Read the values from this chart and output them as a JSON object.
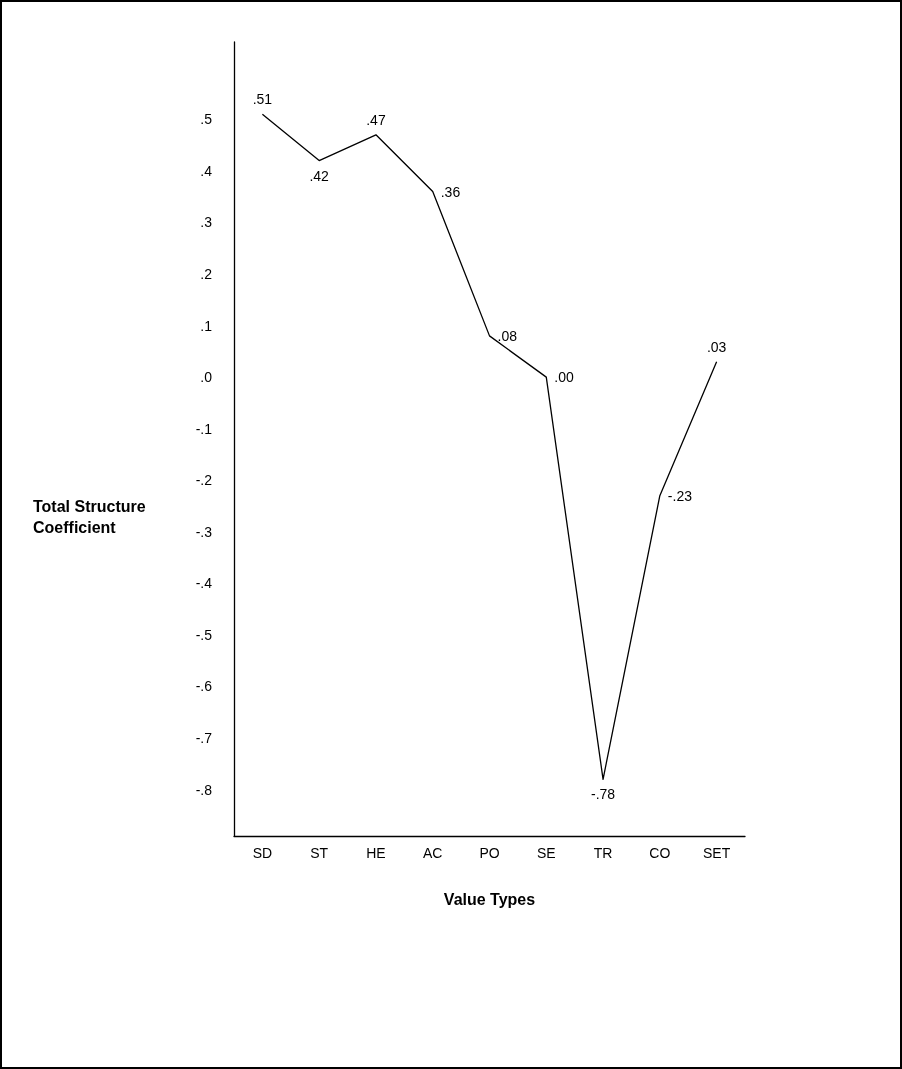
{
  "chart_data": {
    "type": "line",
    "xlabel": "Value Types",
    "ylabel": "Total Structure Coefficient",
    "categories": [
      "SD",
      "ST",
      "HE",
      "AC",
      "PO",
      "SE",
      "TR",
      "CO",
      "SET"
    ],
    "values": [
      0.51,
      0.42,
      0.47,
      0.36,
      0.08,
      0.0,
      -0.78,
      -0.23,
      0.03
    ],
    "value_labels": [
      ".51",
      ".42",
      ".47",
      ".36",
      ".08",
      ".00",
      "-.78",
      "-.23",
      ".03"
    ],
    "color": "#000000",
    "marker": "none",
    "line_style": "solid",
    "ylim": [
      -0.89,
      0.65
    ],
    "yticks": [
      {
        "value": -0.8,
        "label": "-.8"
      },
      {
        "value": -0.7,
        "label": "-.7"
      },
      {
        "value": -0.6,
        "label": "-.6"
      },
      {
        "value": -0.5,
        "label": "-.5"
      },
      {
        "value": -0.4,
        "label": "-.4"
      },
      {
        "value": -0.3,
        "label": "-.3"
      },
      {
        "value": -0.2,
        "label": "-.2"
      },
      {
        "value": -0.1,
        "label": "-.1"
      },
      {
        "value": 0,
        "label": ".0"
      },
      {
        "value": 0.1,
        "label": ".1"
      },
      {
        "value": 0.2,
        "label": ".2"
      },
      {
        "value": 0.3,
        "label": ".3"
      },
      {
        "value": 0.4,
        "label": ".4"
      },
      {
        "value": 0.5,
        "label": ".5"
      }
    ]
  }
}
